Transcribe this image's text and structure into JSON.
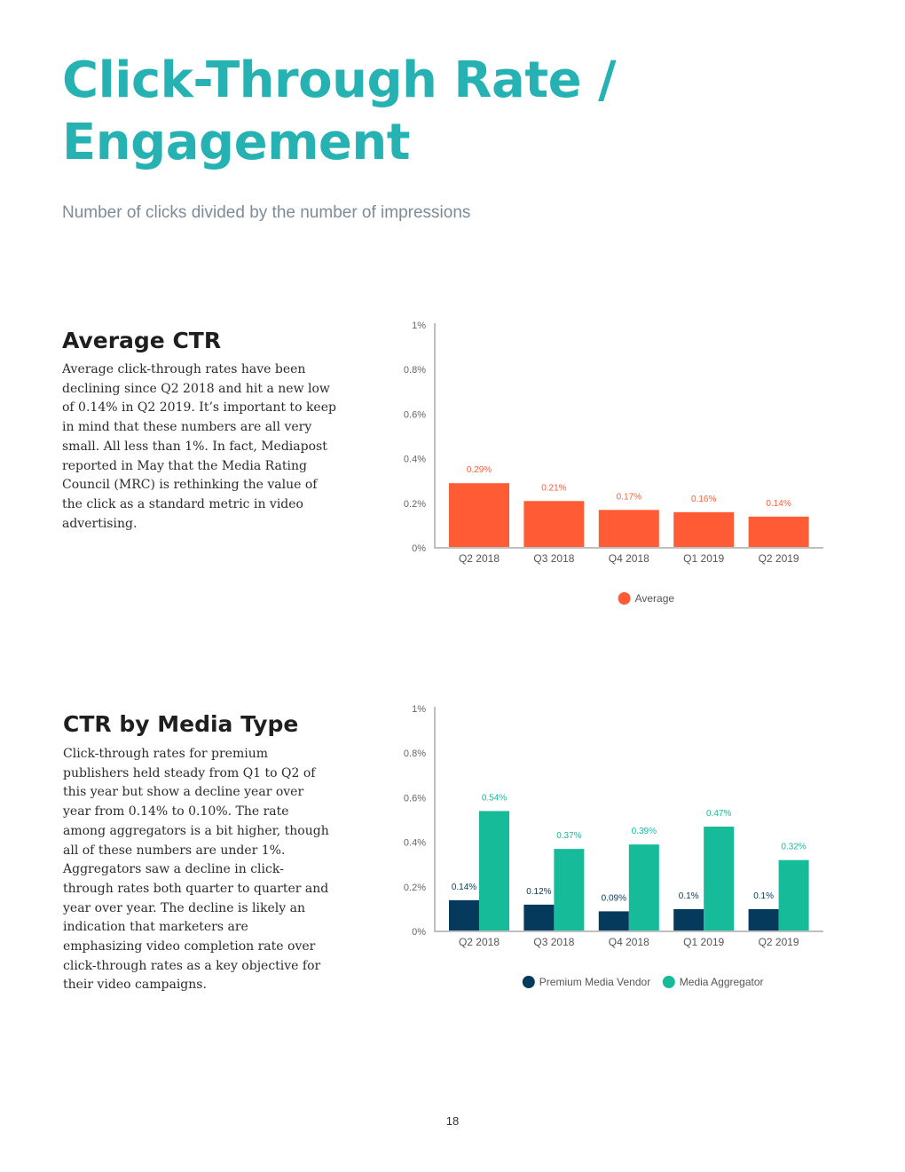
{
  "page": {
    "title": "Click-Through Rate / Engagement",
    "subtitle": "Number of clicks divided by the number of impressions",
    "page_number": "18"
  },
  "sections": [
    {
      "heading": "Average CTR",
      "body": "Average click-through rates have been declining since Q2 2018 and hit a new low of 0.14% in Q2 2019. It’s important to keep in mind that these numbers are all very small. All less than 1%. In fact, Mediapost reported in May that the Media Rating Council (MRC) is rethinking the value of the click as a standard metric in video advertising."
    },
    {
      "heading": "CTR by Media Type",
      "body": "Click-through rates for premium publishers held steady from Q1 to Q2 of this year but show a decline year over year from 0.14% to 0.10%. The rate among aggregators is a bit higher, though all of these numbers are under 1%. Aggregators saw a decline in click-through rates both quarter to quarter and year over year. The decline is likely an indication that marketers are emphasizing video completion rate over click-through rates as a key objective for their video campaigns."
    }
  ],
  "chart_data": [
    {
      "type": "bar",
      "title": "",
      "xlabel": "",
      "ylabel": "",
      "ylim": [
        0,
        1
      ],
      "yticks": [
        "0%",
        "0.2%",
        "0.4%",
        "0.6%",
        "0.8%",
        "1%"
      ],
      "ytick_values": [
        0,
        0.2,
        0.4,
        0.6,
        0.8,
        1
      ],
      "categories": [
        "Q2 2018",
        "Q3 2018",
        "Q4 2018",
        "Q1 2019",
        "Q2 2019"
      ],
      "legend_position": "bottom",
      "series": [
        {
          "name": "Average",
          "color": "#ff5c36",
          "values": [
            0.29,
            0.21,
            0.17,
            0.16,
            0.14
          ],
          "labels": [
            "0.29%",
            "0.21%",
            "0.17%",
            "0.16%",
            "0.14%"
          ]
        }
      ]
    },
    {
      "type": "bar",
      "title": "",
      "xlabel": "",
      "ylabel": "",
      "ylim": [
        0,
        1
      ],
      "yticks": [
        "0%",
        "0.2%",
        "0.4%",
        "0.6%",
        "0.8%",
        "1%"
      ],
      "ytick_values": [
        0,
        0.2,
        0.4,
        0.6,
        0.8,
        1
      ],
      "categories": [
        "Q2 2018",
        "Q3 2018",
        "Q4 2018",
        "Q1 2019",
        "Q2 2019"
      ],
      "legend_position": "bottom",
      "series": [
        {
          "name": "Premium Media Vendor",
          "color": "#053a5c",
          "values": [
            0.14,
            0.12,
            0.09,
            0.1,
            0.1
          ],
          "labels": [
            "0.14%",
            "0.12%",
            "0.09%",
            "0.1%",
            "0.1%"
          ]
        },
        {
          "name": "Media Aggregator",
          "color": "#16bb9a",
          "values": [
            0.54,
            0.37,
            0.39,
            0.47,
            0.32
          ],
          "labels": [
            "0.54%",
            "0.37%",
            "0.39%",
            "0.47%",
            "0.32%"
          ]
        }
      ]
    }
  ]
}
